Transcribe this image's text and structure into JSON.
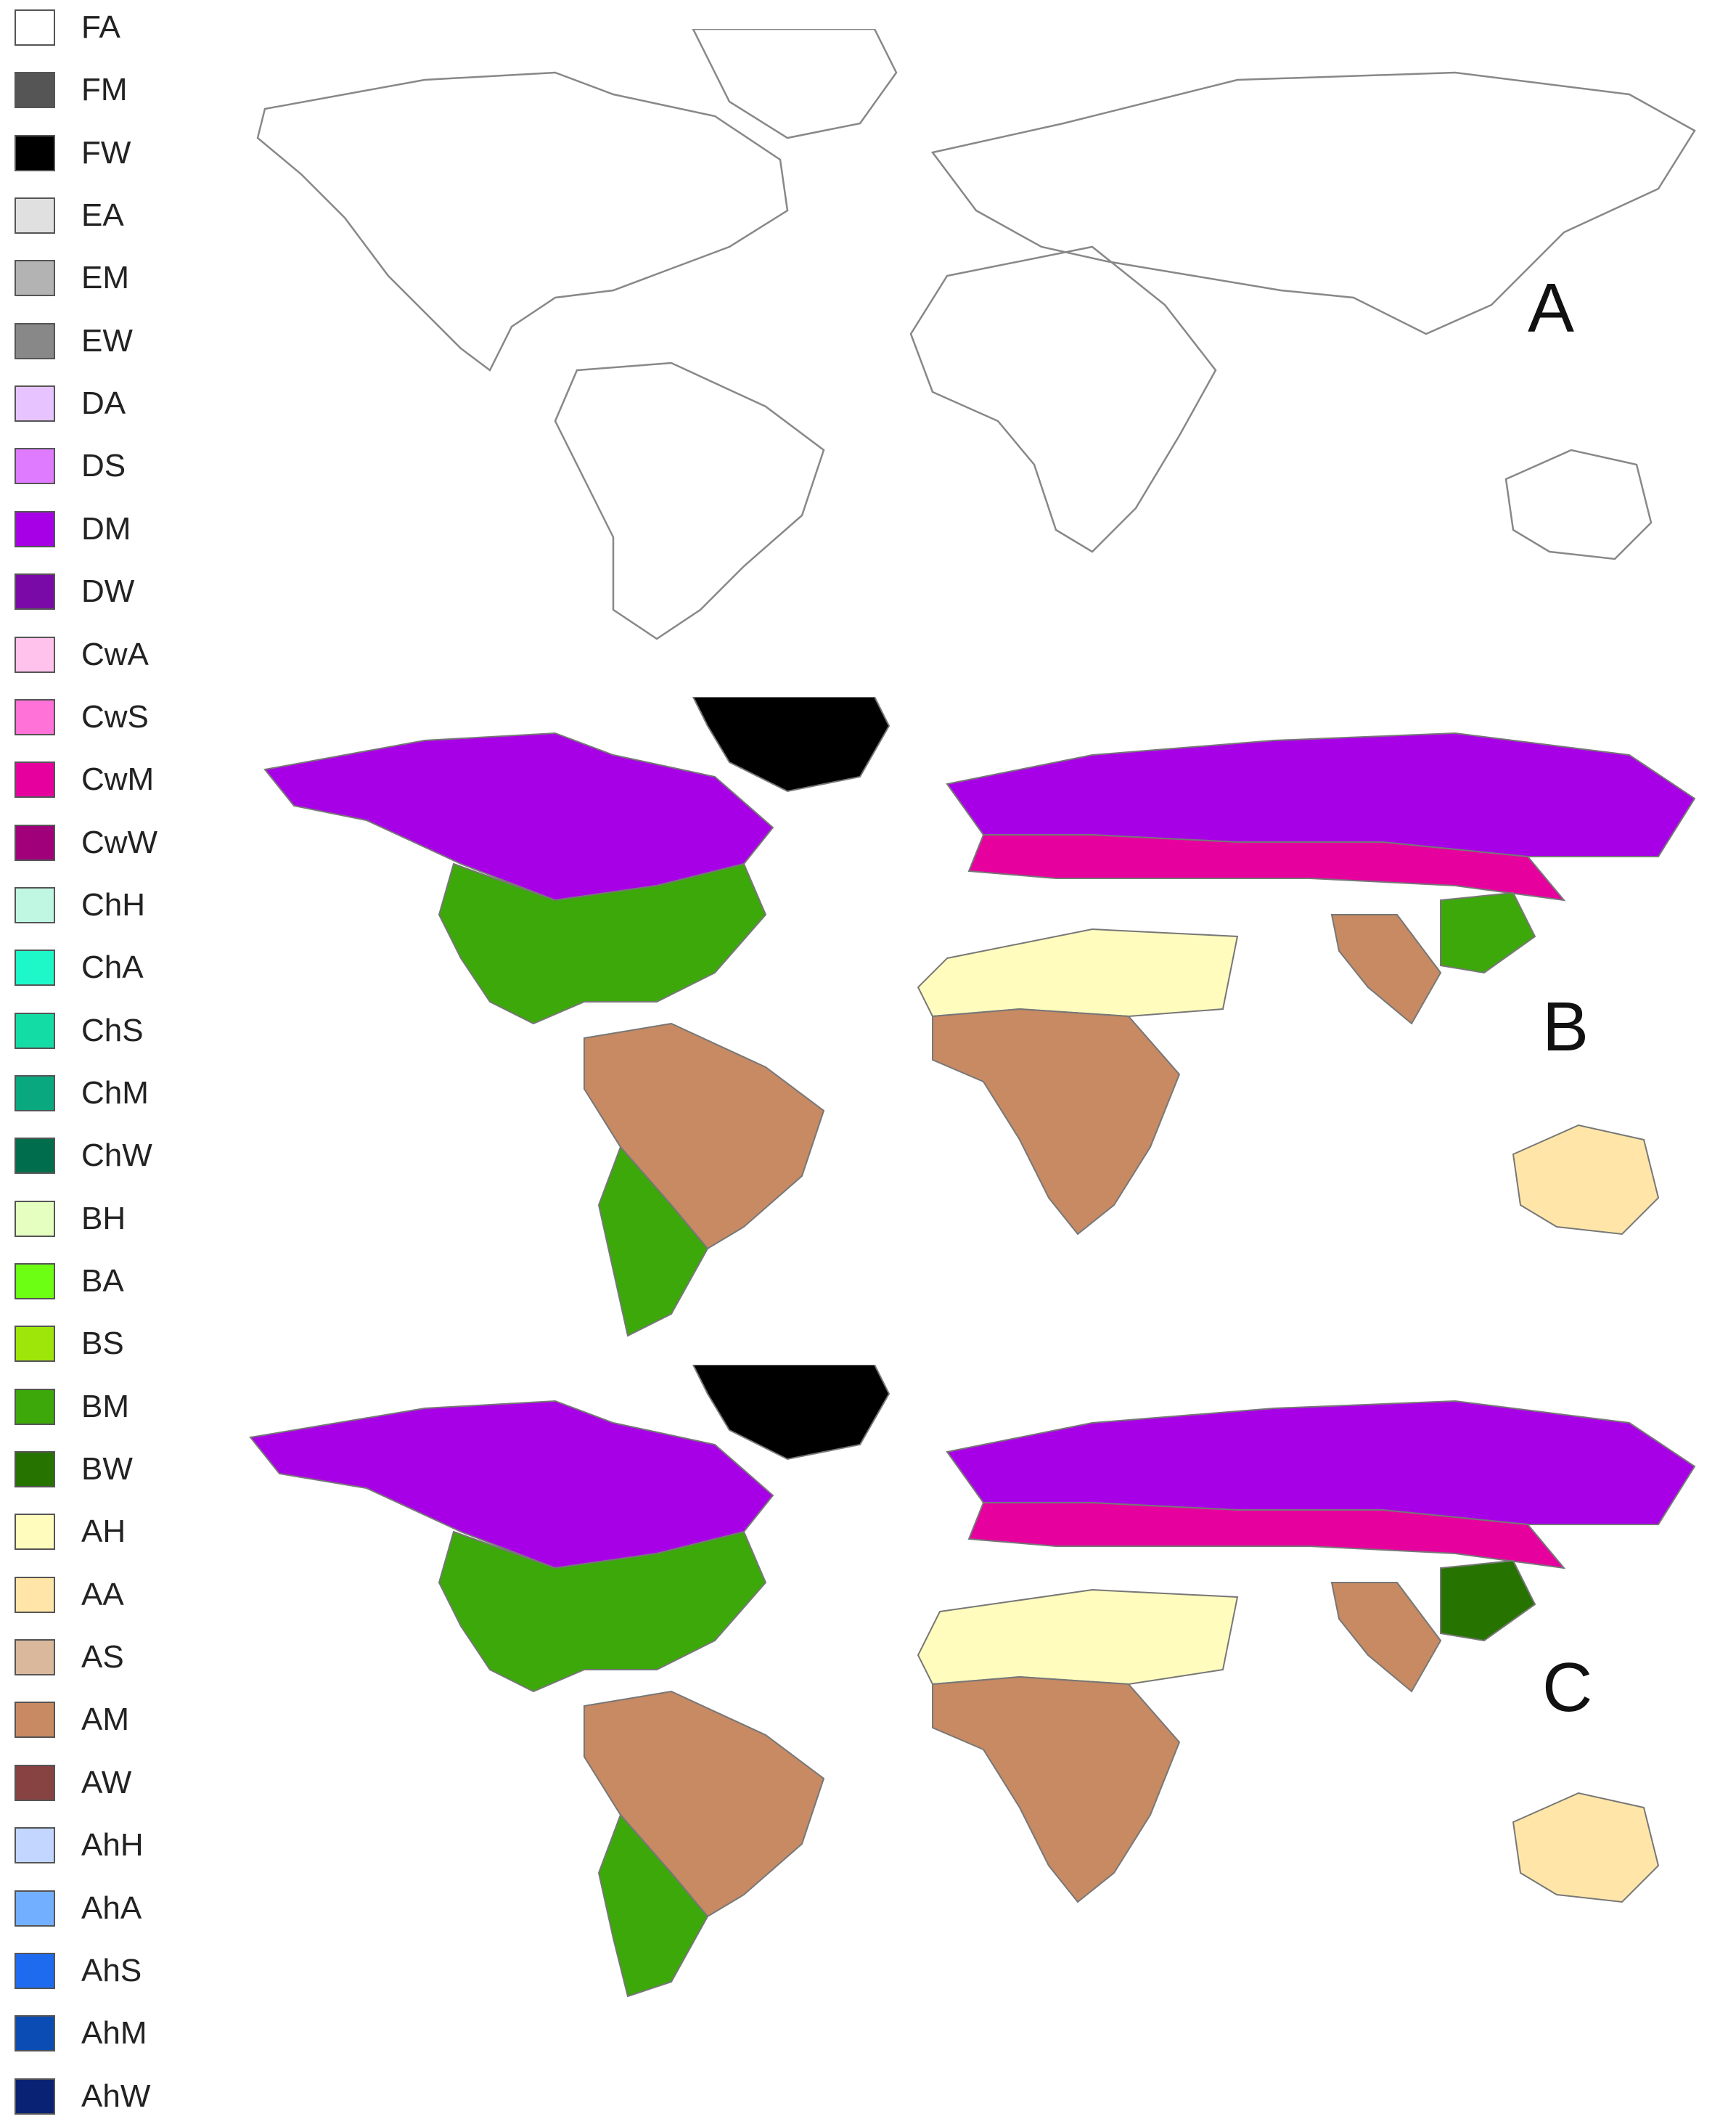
{
  "legend": {
    "items": [
      {
        "code": "FA",
        "color": "#ffffff"
      },
      {
        "code": "FM",
        "color": "#555555"
      },
      {
        "code": "FW",
        "color": "#000000"
      },
      {
        "code": "EA",
        "color": "#e0e0e0"
      },
      {
        "code": "EM",
        "color": "#b3b3b3"
      },
      {
        "code": "EW",
        "color": "#888888"
      },
      {
        "code": "DA",
        "color": "#e7c4ff"
      },
      {
        "code": "DS",
        "color": "#df7bff"
      },
      {
        "code": "DM",
        "color": "#a800e6"
      },
      {
        "code": "DW",
        "color": "#7a0aa8"
      },
      {
        "code": "CwA",
        "color": "#ffc2ec"
      },
      {
        "code": "CwS",
        "color": "#ff72d8"
      },
      {
        "code": "CwM",
        "color": "#e6009e"
      },
      {
        "code": "CwW",
        "color": "#a0007a"
      },
      {
        "code": "ChH",
        "color": "#bff7e3"
      },
      {
        "code": "ChA",
        "color": "#1ef7c8"
      },
      {
        "code": "ChS",
        "color": "#14dca5"
      },
      {
        "code": "ChM",
        "color": "#09a87f"
      },
      {
        "code": "ChW",
        "color": "#006e4c"
      },
      {
        "code": "BH",
        "color": "#e5ffc0"
      },
      {
        "code": "BA",
        "color": "#6cff14"
      },
      {
        "code": "BS",
        "color": "#9ee60a"
      },
      {
        "code": "BM",
        "color": "#3ca80a"
      },
      {
        "code": "BW",
        "color": "#267300"
      },
      {
        "code": "AH",
        "color": "#fffcbe"
      },
      {
        "code": "AA",
        "color": "#ffe6a8"
      },
      {
        "code": "AS",
        "color": "#d9b89c"
      },
      {
        "code": "AM",
        "color": "#c78a63"
      },
      {
        "code": "AW",
        "color": "#874242"
      },
      {
        "code": "AhH",
        "color": "#c2d6ff"
      },
      {
        "code": "AhA",
        "color": "#73afff"
      },
      {
        "code": "AhS",
        "color": "#1f6bf0"
      },
      {
        "code": "AhM",
        "color": "#0a4cb3"
      },
      {
        "code": "AhW",
        "color": "#0a2273"
      }
    ]
  },
  "panels": [
    {
      "letter": "A"
    },
    {
      "letter": "B"
    },
    {
      "letter": "C"
    }
  ]
}
